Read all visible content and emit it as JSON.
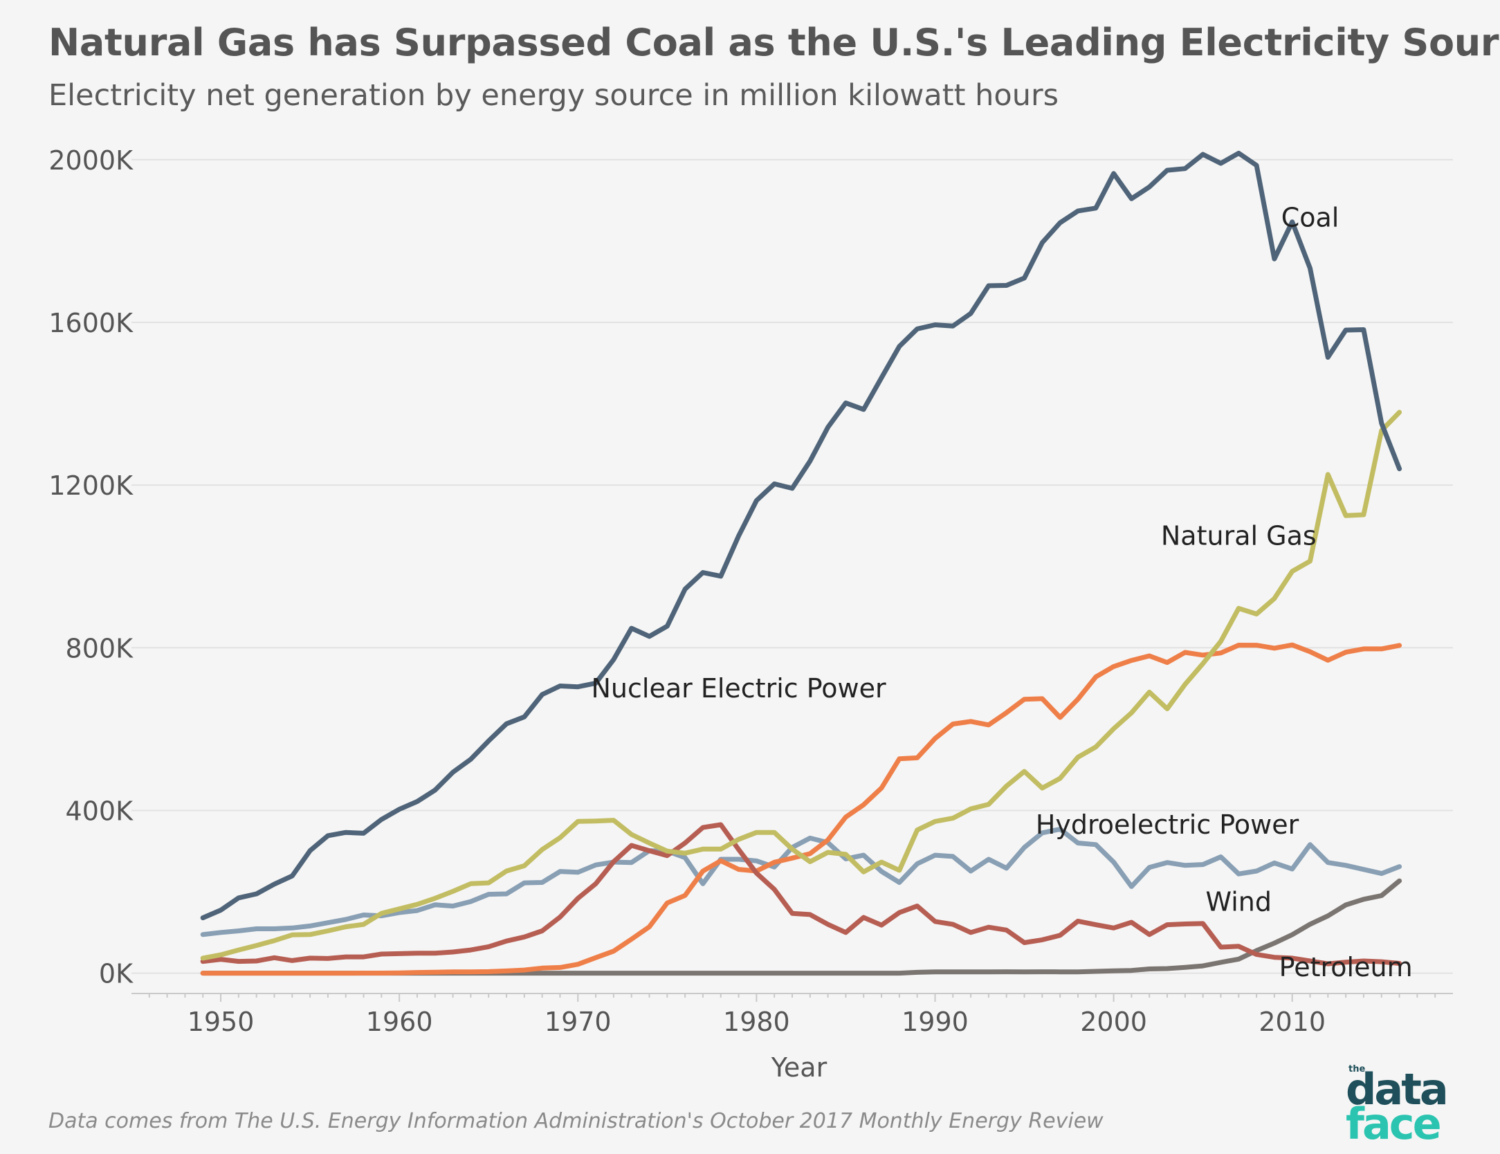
{
  "title": "Natural Gas has Surpassed Coal as the U.S.'s Leading Electricity Source",
  "subtitle": "Electricity net generation by energy source in million kilowatt hours",
  "source_note": "Data comes from The U.S. Energy Information Administration's October 2017 Monthly Energy Review",
  "logo": {
    "small": "the",
    "line1": "data",
    "line2": "face"
  },
  "chart_data": {
    "type": "line",
    "xlabel": "Year",
    "ylabel": "",
    "xlim": [
      1945,
      2019
    ],
    "ylim": [
      -50000,
      2100000
    ],
    "x_ticks": [
      1950,
      1960,
      1970,
      1980,
      1990,
      2000,
      2010
    ],
    "x_tick_labels": [
      "1950",
      "1960",
      "1970",
      "1980",
      "1990",
      "2000",
      "2010"
    ],
    "y_ticks": [
      0,
      400000,
      800000,
      1200000,
      1600000,
      2000000
    ],
    "y_tick_labels": [
      "0K",
      "400K",
      "800K",
      "1200K",
      "1600K",
      "2000K"
    ],
    "grid": "horizontal",
    "legend": "inline labels",
    "x": [
      1949,
      1950,
      1951,
      1952,
      1953,
      1954,
      1955,
      1956,
      1957,
      1958,
      1959,
      1960,
      1961,
      1962,
      1963,
      1964,
      1965,
      1966,
      1967,
      1968,
      1969,
      1970,
      1971,
      1972,
      1973,
      1974,
      1975,
      1976,
      1977,
      1978,
      1979,
      1980,
      1981,
      1982,
      1983,
      1984,
      1985,
      1986,
      1987,
      1988,
      1989,
      1990,
      1991,
      1992,
      1993,
      1994,
      1995,
      1996,
      1997,
      1998,
      1999,
      2000,
      2001,
      2002,
      2003,
      2004,
      2005,
      2006,
      2007,
      2008,
      2009,
      2010,
      2011,
      2012,
      2013,
      2014,
      2015,
      2016
    ],
    "series": [
      {
        "name": "Wind",
        "color": "#7b7571",
        "label_year": 2007,
        "label_value": 175000,
        "values": [
          0,
          0,
          0,
          0,
          0,
          0,
          0,
          0,
          0,
          0,
          0,
          0,
          0,
          0,
          0,
          0,
          0,
          0,
          0,
          0,
          0,
          0,
          0,
          0,
          0,
          0,
          0,
          0,
          0,
          0,
          0,
          0,
          0,
          0,
          0,
          0,
          0,
          0,
          0,
          0,
          2000,
          3000,
          3000,
          3000,
          3000,
          3400,
          3200,
          3400,
          3300,
          3000,
          4500,
          5600,
          6700,
          10400,
          11200,
          14100,
          17800,
          26600,
          34500,
          55400,
          73900,
          94600,
          120200,
          140800,
          167800,
          181600,
          190700,
          226900
        ]
      },
      {
        "name": "Hydroelectric Power",
        "color": "#889fb4",
        "label_year": 2003,
        "label_value": 365000,
        "values": [
          95000,
          100000,
          104000,
          109000,
          109000,
          111000,
          116000,
          124000,
          132000,
          143000,
          141000,
          149000,
          154000,
          168000,
          165000,
          176000,
          194000,
          195000,
          222000,
          223000,
          250000,
          248000,
          266000,
          273000,
          272000,
          301000,
          300000,
          284000,
          220000,
          280000,
          280000,
          276000,
          261000,
          309000,
          332000,
          321000,
          281000,
          290000,
          250000,
          223000,
          269000,
          290000,
          287000,
          251000,
          280000,
          258000,
          309000,
          345000,
          354000,
          320000,
          316000,
          273000,
          213000,
          260000,
          272000,
          265000,
          267000,
          286000,
          244000,
          251000,
          271000,
          256000,
          316000,
          272000,
          265000,
          255000,
          245000,
          262000
        ]
      },
      {
        "name": "Nuclear Electric Power",
        "color": "#ef7f49",
        "label_year": 1979,
        "label_value": 700000,
        "values": [
          0,
          0,
          0,
          0,
          0,
          0,
          0,
          0,
          0,
          200,
          200,
          500,
          1700,
          2300,
          3200,
          3300,
          3700,
          5500,
          7700,
          12500,
          13900,
          21800,
          38100,
          54100,
          83500,
          114000,
          172500,
          191100,
          250900,
          276400,
          255200,
          251100,
          272700,
          282800,
          293700,
          327600,
          383700,
          414000,
          455300,
          527000,
          529400,
          576900,
          612600,
          618800,
          610300,
          640400,
          673400,
          674700,
          628600,
          673700,
          728300,
          753900,
          768800,
          780100,
          763700,
          788500,
          782000,
          787200,
          806400,
          806200,
          798900,
          807000,
          790200,
          769300,
          789000,
          797200,
          797200,
          805700
        ]
      },
      {
        "name": "Petroleum",
        "color": "#b75e53",
        "label_year": 2013,
        "label_value": 15000,
        "values": [
          29000,
          34000,
          29000,
          30000,
          38000,
          31000,
          37000,
          36000,
          40000,
          40000,
          47000,
          48000,
          49000,
          49000,
          52000,
          57000,
          65000,
          79000,
          89000,
          104000,
          138000,
          184000,
          220000,
          274000,
          314000,
          301000,
          289000,
          320000,
          358000,
          365000,
          304000,
          246000,
          206000,
          147000,
          144000,
          120000,
          100000,
          137000,
          118000,
          149000,
          165000,
          127000,
          120000,
          100000,
          113000,
          106000,
          75000,
          82000,
          93000,
          128000,
          119000,
          111000,
          125000,
          95000,
          119000,
          121000,
          122000,
          64000,
          66000,
          46000,
          39000,
          37000,
          30000,
          23000,
          27000,
          30000,
          28000,
          24000
        ]
      },
      {
        "name": "Natural Gas",
        "color": "#c2bd62",
        "label_year": 2007,
        "label_value": 1075000,
        "values": [
          37000,
          45000,
          57000,
          68000,
          80000,
          94000,
          95000,
          104000,
          114000,
          120000,
          147000,
          158000,
          169000,
          184000,
          201000,
          220000,
          222000,
          251000,
          264000,
          304000,
          333000,
          373000,
          374000,
          376000,
          341000,
          320000,
          300000,
          295000,
          305000,
          305000,
          329000,
          346000,
          346000,
          305000,
          274000,
          297000,
          292000,
          249000,
          273000,
          253000,
          352000,
          373000,
          381000,
          404000,
          415000,
          460000,
          496000,
          455000,
          479000,
          531000,
          556000,
          601000,
          640000,
          691000,
          650000,
          710000,
          761000,
          816000,
          897000,
          883000,
          921000,
          988000,
          1013000,
          1226000,
          1125000,
          1127000,
          1334000,
          1379000
        ]
      },
      {
        "name": "Coal",
        "color": "#4f6479",
        "label_year": 2011,
        "label_value": 1858000,
        "values": [
          136000,
          155000,
          185000,
          195000,
          219000,
          239000,
          301000,
          338000,
          346000,
          344000,
          378000,
          403000,
          422000,
          450000,
          494000,
          526000,
          571000,
          613000,
          630000,
          685000,
          706000,
          704000,
          713000,
          771000,
          848000,
          828000,
          853000,
          944000,
          985000,
          976000,
          1075000,
          1162000,
          1203000,
          1192000,
          1259000,
          1342000,
          1402000,
          1386000,
          1464000,
          1541000,
          1584000,
          1594000,
          1591000,
          1622000,
          1690000,
          1691000,
          1709000,
          1796000,
          1845000,
          1874000,
          1881000,
          1966000,
          1904000,
          1933000,
          1974000,
          1978000,
          2013000,
          1991000,
          2016000,
          1986000,
          1756000,
          1847000,
          1733000,
          1514000,
          1581000,
          1582000,
          1352000,
          1240000
        ]
      }
    ]
  }
}
